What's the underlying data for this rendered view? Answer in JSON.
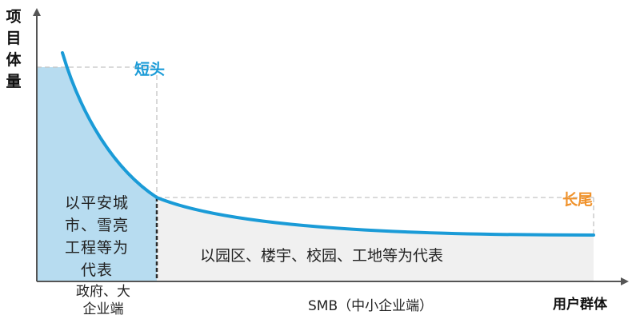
{
  "y_axis_label": "项目体量",
  "x_axis_label": "用户群体",
  "head_tag": "短头",
  "tail_tag": "长尾",
  "head_description": "以平安城\n市、雪亮\n工程等为\n代表",
  "tail_description": "以园区、楼宇、校园、工地等为代表",
  "x_segment_head": "政府、大\n企业端",
  "x_segment_tail": "SMB（中小企业端）",
  "colors": {
    "curve": "#1a9bd7",
    "head_fill": "#b7dcf0",
    "tail_fill": "#f0f0f0",
    "head_tag": "#1a9bd7",
    "tail_tag": "#f0922b",
    "axis": "#555555",
    "guide": "#c4c4c4"
  }
}
